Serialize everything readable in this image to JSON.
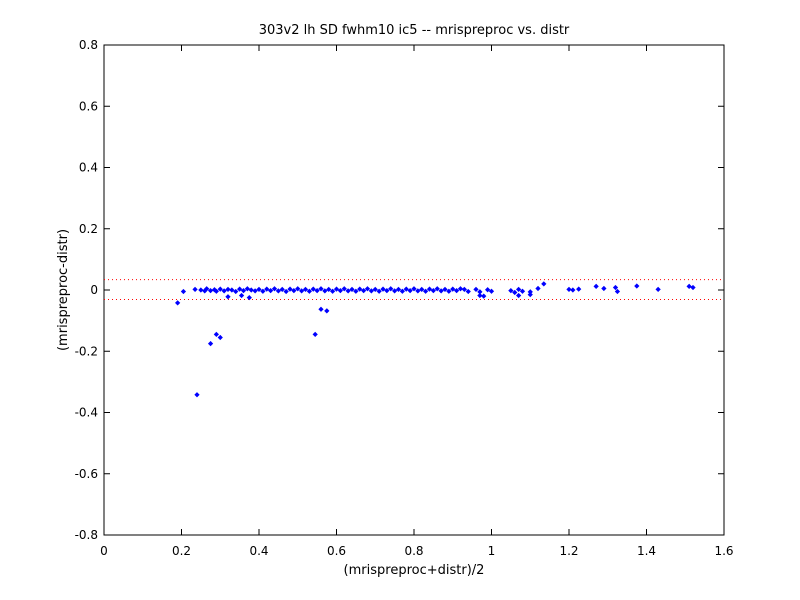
{
  "chart_data": {
    "type": "scatter",
    "title": "303v2 lh SD fwhm10 ic5 -- mrispreproc vs. distr",
    "xlabel": "(mrispreproc+distr)/2",
    "ylabel": "(mrispreproc-distr)",
    "xlim": [
      0,
      1.6
    ],
    "ylim": [
      -0.8,
      0.8
    ],
    "xticks": [
      0,
      0.2,
      0.4,
      0.6,
      0.8,
      1,
      1.2,
      1.4,
      1.6
    ],
    "yticks": [
      -0.8,
      -0.6,
      -0.4,
      -0.2,
      0,
      0.2,
      0.4,
      0.6,
      0.8
    ],
    "xtick_labels": [
      "0",
      "0.2",
      "0.4",
      "0.6",
      "0.8",
      "1",
      "1.2",
      "1.4",
      "1.6"
    ],
    "ytick_labels": [
      "-0.8",
      "-0.6",
      "-0.4",
      "-0.2",
      "0",
      "0.2",
      "0.4",
      "0.6",
      "0.8"
    ],
    "grid": false,
    "reference_lines": [
      {
        "y": 0.034,
        "style": "dotted",
        "color": "#ff0000"
      },
      {
        "y": -0.031,
        "style": "dotted",
        "color": "#ff0000"
      }
    ],
    "series": [
      {
        "color": "#0000ff",
        "marker": "diamond",
        "points": [
          [
            0.19,
            -0.042
          ],
          [
            0.205,
            -0.005
          ],
          [
            0.235,
            0.002
          ],
          [
            0.25,
            0.0
          ],
          [
            0.26,
            -0.003
          ],
          [
            0.265,
            0.004
          ],
          [
            0.275,
            -0.002
          ],
          [
            0.285,
            0.001
          ],
          [
            0.29,
            -0.004
          ],
          [
            0.3,
            0.003
          ],
          [
            0.31,
            -0.003
          ],
          [
            0.32,
            0.002
          ],
          [
            0.33,
            0.0
          ],
          [
            0.34,
            -0.005
          ],
          [
            0.35,
            0.003
          ],
          [
            0.36,
            -0.002
          ],
          [
            0.37,
            0.004
          ],
          [
            0.38,
            0.0
          ],
          [
            0.39,
            -0.003
          ],
          [
            0.4,
            0.002
          ],
          [
            0.41,
            -0.004
          ],
          [
            0.42,
            0.003
          ],
          [
            0.43,
            -0.002
          ],
          [
            0.44,
            0.004
          ],
          [
            0.45,
            -0.003
          ],
          [
            0.46,
            0.002
          ],
          [
            0.47,
            -0.005
          ],
          [
            0.48,
            0.003
          ],
          [
            0.49,
            -0.002
          ],
          [
            0.5,
            0.004
          ],
          [
            0.51,
            -0.003
          ],
          [
            0.52,
            0.002
          ],
          [
            0.53,
            -0.004
          ],
          [
            0.54,
            0.003
          ],
          [
            0.55,
            -0.002
          ],
          [
            0.56,
            0.004
          ],
          [
            0.57,
            -0.003
          ],
          [
            0.58,
            0.002
          ],
          [
            0.59,
            -0.004
          ],
          [
            0.6,
            0.003
          ],
          [
            0.61,
            -0.002
          ],
          [
            0.62,
            0.004
          ],
          [
            0.63,
            -0.003
          ],
          [
            0.64,
            0.002
          ],
          [
            0.65,
            -0.004
          ],
          [
            0.66,
            0.003
          ],
          [
            0.67,
            -0.002
          ],
          [
            0.68,
            0.004
          ],
          [
            0.69,
            -0.003
          ],
          [
            0.7,
            0.002
          ],
          [
            0.71,
            -0.004
          ],
          [
            0.72,
            0.003
          ],
          [
            0.73,
            -0.002
          ],
          [
            0.74,
            0.004
          ],
          [
            0.75,
            -0.003
          ],
          [
            0.76,
            0.002
          ],
          [
            0.77,
            -0.004
          ],
          [
            0.78,
            0.003
          ],
          [
            0.79,
            -0.002
          ],
          [
            0.8,
            0.004
          ],
          [
            0.81,
            -0.003
          ],
          [
            0.82,
            0.002
          ],
          [
            0.83,
            -0.004
          ],
          [
            0.84,
            0.003
          ],
          [
            0.85,
            -0.002
          ],
          [
            0.86,
            0.004
          ],
          [
            0.87,
            -0.003
          ],
          [
            0.88,
            0.002
          ],
          [
            0.89,
            -0.004
          ],
          [
            0.9,
            0.003
          ],
          [
            0.91,
            -0.002
          ],
          [
            0.92,
            0.004
          ],
          [
            0.93,
            0.002
          ],
          [
            0.94,
            -0.005
          ],
          [
            0.96,
            0.002
          ],
          [
            0.97,
            -0.006
          ],
          [
            0.99,
            0.001
          ],
          [
            1.0,
            -0.004
          ],
          [
            1.05,
            -0.002
          ],
          [
            1.06,
            -0.008
          ],
          [
            1.07,
            0.002
          ],
          [
            1.08,
            -0.004
          ],
          [
            1.1,
            -0.006
          ],
          [
            1.12,
            0.005
          ],
          [
            1.135,
            0.02
          ],
          [
            0.275,
            -0.175
          ],
          [
            0.29,
            -0.145
          ],
          [
            0.3,
            -0.155
          ],
          [
            0.24,
            -0.342
          ],
          [
            0.32,
            -0.022
          ],
          [
            0.355,
            -0.018
          ],
          [
            0.375,
            -0.025
          ],
          [
            0.545,
            -0.145
          ],
          [
            0.56,
            -0.063
          ],
          [
            0.575,
            -0.068
          ],
          [
            0.97,
            -0.018
          ],
          [
            0.98,
            -0.02
          ],
          [
            1.07,
            -0.018
          ],
          [
            1.1,
            -0.015
          ],
          [
            1.2,
            0.002
          ],
          [
            1.21,
            0.0
          ],
          [
            1.225,
            0.003
          ],
          [
            1.27,
            0.012
          ],
          [
            1.29,
            0.005
          ],
          [
            1.32,
            0.008
          ],
          [
            1.325,
            -0.005
          ],
          [
            1.375,
            0.013
          ],
          [
            1.43,
            0.002
          ],
          [
            1.51,
            0.012
          ],
          [
            1.52,
            0.008
          ]
        ]
      }
    ]
  }
}
